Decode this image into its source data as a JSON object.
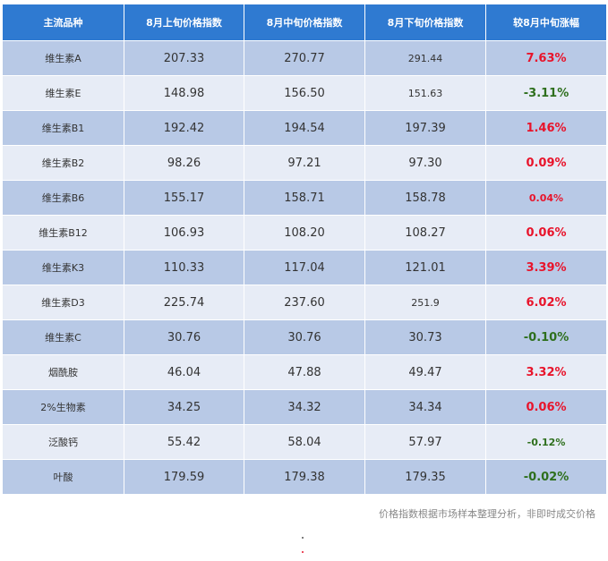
{
  "table": {
    "headers": [
      "主流品种",
      "8月上旬价格指数",
      "8月中旬价格指数",
      "8月下旬价格指数",
      "较8月中旬涨幅"
    ],
    "rows": [
      {
        "name": "维生素A",
        "early": "207.33",
        "mid": "270.77",
        "late": "291.44",
        "change": "7.63%",
        "direction": "up"
      },
      {
        "name": "维生素E",
        "early": "148.98",
        "mid": "156.50",
        "late": "151.63",
        "change": "-3.11%",
        "direction": "down"
      },
      {
        "name": "维生素B1",
        "early": "192.42",
        "mid": "194.54",
        "late": "197.39",
        "change": "1.46%",
        "direction": "up"
      },
      {
        "name": "维生素B2",
        "early": "98.26",
        "mid": "97.21",
        "late": "97.30",
        "change": "0.09%",
        "direction": "up"
      },
      {
        "name": "维生素B6",
        "early": "155.17",
        "mid": "158.71",
        "late": "158.78",
        "change": "0.04%",
        "direction": "up"
      },
      {
        "name": "维生素B12",
        "early": "106.93",
        "mid": "108.20",
        "late": "108.27",
        "change": "0.06%",
        "direction": "up"
      },
      {
        "name": "维生素K3",
        "early": "110.33",
        "mid": "117.04",
        "late": "121.01",
        "change": "3.39%",
        "direction": "up"
      },
      {
        "name": "维生素D3",
        "early": "225.74",
        "mid": "237.60",
        "late": "251.9",
        "change": "6.02%",
        "direction": "up"
      },
      {
        "name": "维生素C",
        "early": "30.76",
        "mid": "30.76",
        "late": "30.73",
        "change": "-0.10%",
        "direction": "down"
      },
      {
        "name": "烟酰胺",
        "early": "46.04",
        "mid": "47.88",
        "late": "49.47",
        "change": "3.32%",
        "direction": "up"
      },
      {
        "name": "2%生物素",
        "early": "34.25",
        "mid": "34.32",
        "late": "34.34",
        "change": "0.06%",
        "direction": "up"
      },
      {
        "name": "泛酸钙",
        "early": "55.42",
        "mid": "58.04",
        "late": "57.97",
        "change": "-0.12%",
        "direction": "down"
      },
      {
        "name": "叶酸",
        "early": "179.59",
        "mid": "179.38",
        "late": "179.35",
        "change": "-0.02%",
        "direction": "down"
      }
    ]
  },
  "footnote": "价格指数根据市场样本整理分析，非即时成交价格",
  "colors": {
    "header_bg": "#2f7ad1",
    "row_dark": "#b8c9e6",
    "row_light": "#e7ecf6",
    "rise": "#e8142b",
    "fall": "#2e6f1d"
  }
}
